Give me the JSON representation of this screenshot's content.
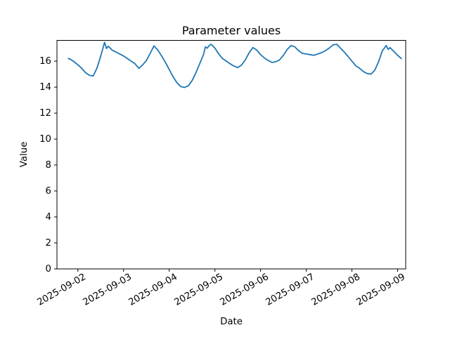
{
  "figure": {
    "title": "Parameter values",
    "xlabel": "Date",
    "ylabel": "Value"
  },
  "colors": {
    "line": "#1f77b4",
    "axes": "#000000",
    "text": "#000000",
    "background": "#ffffff"
  },
  "chart_data": {
    "type": "line",
    "title": "Parameter values",
    "xlabel": "Date",
    "ylabel": "Value",
    "grid": false,
    "legend": false,
    "line_color": "#1f77b4",
    "x_ticks": [
      "2025-09-02",
      "2025-09-03",
      "2025-09-04",
      "2025-09-05",
      "2025-09-06",
      "2025-09-07",
      "2025-09-08",
      "2025-09-09"
    ],
    "y_ticks": [
      0,
      2,
      4,
      6,
      8,
      10,
      12,
      14,
      16
    ],
    "xlim": [
      "2025-09-01 13:00",
      "2025-09-09 04:15"
    ],
    "ylim": [
      0,
      17.6
    ],
    "x": [
      "2025-09-01 19:00",
      "2025-09-01 20:00",
      "2025-09-01 22:00",
      "2025-09-02 00:00",
      "2025-09-02 02:00",
      "2025-09-02 04:00",
      "2025-09-02 06:00",
      "2025-09-02 08:00",
      "2025-09-02 10:00",
      "2025-09-02 12:00",
      "2025-09-02 14:00",
      "2025-09-02 15:00",
      "2025-09-02 16:00",
      "2025-09-02 18:00",
      "2025-09-02 20:00",
      "2025-09-02 22:00",
      "2025-09-03 00:00",
      "2025-09-03 02:00",
      "2025-09-03 04:00",
      "2025-09-03 06:00",
      "2025-09-03 08:00",
      "2025-09-03 10:00",
      "2025-09-03 12:00",
      "2025-09-03 14:00",
      "2025-09-03 16:00",
      "2025-09-03 18:00",
      "2025-09-03 20:00",
      "2025-09-03 22:00",
      "2025-09-04 00:00",
      "2025-09-04 02:00",
      "2025-09-04 04:00",
      "2025-09-04 06:00",
      "2025-09-04 08:00",
      "2025-09-04 10:00",
      "2025-09-04 12:00",
      "2025-09-04 14:00",
      "2025-09-04 16:00",
      "2025-09-04 18:00",
      "2025-09-04 19:00",
      "2025-09-04 20:00",
      "2025-09-04 21:00",
      "2025-09-04 22:00",
      "2025-09-05 00:00",
      "2025-09-05 02:00",
      "2025-09-05 04:00",
      "2025-09-05 06:00",
      "2025-09-05 08:00",
      "2025-09-05 10:00",
      "2025-09-05 12:00",
      "2025-09-05 14:00",
      "2025-09-05 16:00",
      "2025-09-05 18:00",
      "2025-09-05 20:00",
      "2025-09-05 22:00",
      "2025-09-06 00:00",
      "2025-09-06 02:00",
      "2025-09-06 04:00",
      "2025-09-06 06:00",
      "2025-09-06 08:00",
      "2025-09-06 10:00",
      "2025-09-06 12:00",
      "2025-09-06 14:00",
      "2025-09-06 16:00",
      "2025-09-06 18:00",
      "2025-09-06 20:00",
      "2025-09-06 22:00",
      "2025-09-07 00:00",
      "2025-09-07 02:00",
      "2025-09-07 04:00",
      "2025-09-07 06:00",
      "2025-09-07 08:00",
      "2025-09-07 10:00",
      "2025-09-07 12:00",
      "2025-09-07 14:00",
      "2025-09-07 16:00",
      "2025-09-07 18:00",
      "2025-09-07 20:00",
      "2025-09-07 22:00",
      "2025-09-08 00:00",
      "2025-09-08 02:00",
      "2025-09-08 04:00",
      "2025-09-08 06:00",
      "2025-09-08 08:00",
      "2025-09-08 10:00",
      "2025-09-08 12:00",
      "2025-09-08 14:00",
      "2025-09-08 16:00",
      "2025-09-08 18:00",
      "2025-09-08 19:00",
      "2025-09-08 20:00",
      "2025-09-08 22:00",
      "2025-09-09 00:00",
      "2025-09-09 02:00"
    ],
    "values": [
      16.2,
      16.15,
      15.95,
      15.72,
      15.45,
      15.12,
      14.92,
      14.85,
      15.45,
      16.4,
      17.45,
      16.98,
      17.15,
      16.85,
      16.7,
      16.55,
      16.4,
      16.2,
      16.0,
      15.8,
      15.45,
      15.7,
      16.05,
      16.6,
      17.18,
      16.85,
      16.4,
      15.9,
      15.35,
      14.8,
      14.35,
      14.05,
      13.97,
      14.1,
      14.5,
      15.1,
      15.8,
      16.5,
      17.1,
      17.0,
      17.2,
      17.3,
      17.0,
      16.55,
      16.2,
      16.0,
      15.8,
      15.62,
      15.5,
      15.7,
      16.1,
      16.65,
      17.05,
      16.85,
      16.5,
      16.25,
      16.05,
      15.9,
      15.95,
      16.1,
      16.45,
      16.9,
      17.2,
      17.1,
      16.8,
      16.6,
      16.55,
      16.5,
      16.45,
      16.55,
      16.65,
      16.8,
      17.0,
      17.25,
      17.3,
      17.0,
      16.7,
      16.35,
      16.0,
      15.65,
      15.45,
      15.2,
      15.05,
      15.0,
      15.3,
      15.95,
      16.8,
      17.2,
      16.9,
      17.05,
      16.75,
      16.45,
      16.2
    ]
  }
}
